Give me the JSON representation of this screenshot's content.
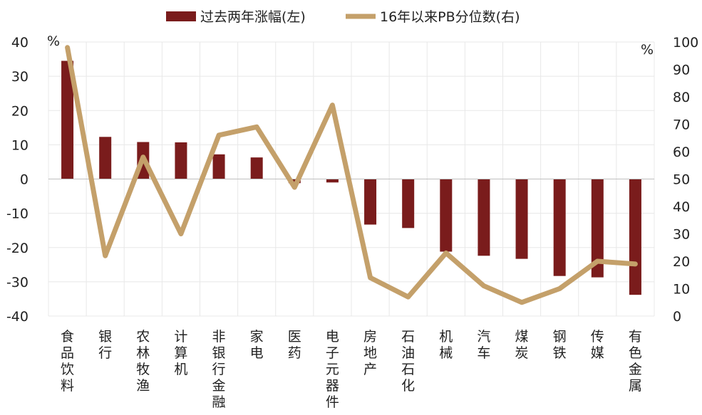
{
  "chart_data": {
    "type": "bar+line",
    "categories": [
      "食品饮料",
      "银行",
      "农林牧渔",
      "计算机",
      "非银行金融",
      "家电",
      "医药",
      "电子元器件",
      "房地产",
      "石油石化",
      "机械",
      "汽车",
      "煤炭",
      "钢铁",
      "传媒",
      "有色金属"
    ],
    "series": [
      {
        "name": "过去两年涨幅(左)",
        "type": "bar",
        "axis": "left",
        "color": "#7a1c1c",
        "values": [
          34.5,
          12.3,
          10.8,
          10.7,
          7.2,
          6.3,
          -1.2,
          -1.0,
          -13.3,
          -14.3,
          -21.2,
          -22.4,
          -23.3,
          -28.3,
          -28.7,
          -33.8
        ]
      },
      {
        "name": "16年以来PB分位数(右)",
        "type": "line",
        "axis": "right",
        "color": "#c4a06a",
        "values": [
          98,
          22,
          58,
          30,
          66,
          69,
          47,
          77,
          14,
          7,
          23,
          11,
          5,
          10,
          20,
          19
        ]
      }
    ],
    "y_left": {
      "min": -40,
      "max": 40,
      "step": 10,
      "unit": "%"
    },
    "y_right": {
      "min": 0,
      "max": 100,
      "step": 10,
      "unit": "%"
    },
    "grid": true,
    "legend_position": "top-center"
  }
}
